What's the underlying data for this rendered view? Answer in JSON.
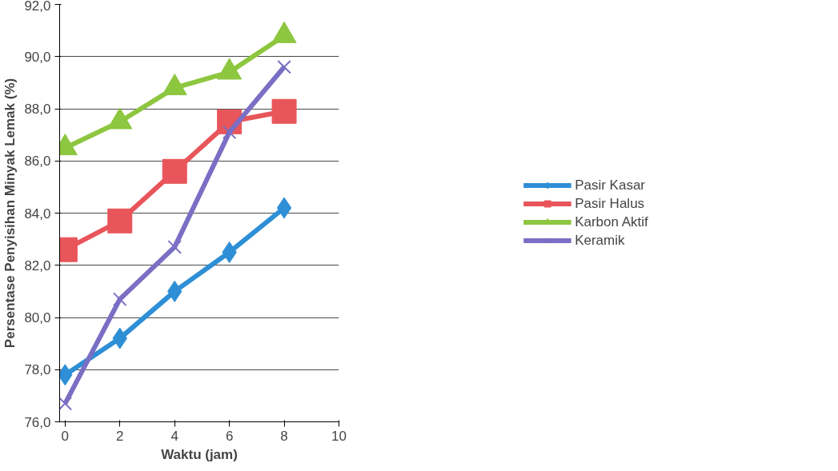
{
  "chart_data": {
    "type": "line",
    "xlabel": "Waktu (jam)",
    "ylabel": "Persentase Penyisihan Minyak Lemak (%)",
    "x": [
      0,
      2,
      4,
      6,
      8
    ],
    "xlim": [
      -0.2,
      10
    ],
    "xticks": [
      0,
      2,
      4,
      6,
      8,
      10
    ],
    "ylim": [
      76,
      92
    ],
    "yticks": [
      {
        "value": 76,
        "label": "76,0"
      },
      {
        "value": 78,
        "label": "78,0"
      },
      {
        "value": 80,
        "label": "80,0"
      },
      {
        "value": 82,
        "label": "82,0"
      },
      {
        "value": 84,
        "label": "84,0"
      },
      {
        "value": 86,
        "label": "86,0"
      },
      {
        "value": 88,
        "label": "88,0"
      },
      {
        "value": 90,
        "label": "90,0"
      },
      {
        "value": 92,
        "label": "92,0"
      }
    ],
    "grid": "y",
    "legend": "right",
    "line_style": "solid",
    "series": [
      {
        "name": "Pasir Kasar",
        "color": "#2e8fd6",
        "marker": "diamond",
        "values": [
          77.8,
          79.2,
          81.0,
          82.5,
          84.2
        ]
      },
      {
        "name": "Pasir Halus",
        "color": "#e8555a",
        "marker": "square",
        "values": [
          82.6,
          83.7,
          85.6,
          87.5,
          87.9
        ]
      },
      {
        "name": "Karbon Aktif",
        "color": "#8dc63f",
        "marker": "triangle",
        "values": [
          86.5,
          87.5,
          88.8,
          89.4,
          90.8
        ]
      },
      {
        "name": "Keramik",
        "color": "#7a6fc4",
        "marker": "cross",
        "values": [
          76.7,
          80.7,
          82.7,
          87.1,
          89.6
        ]
      }
    ]
  }
}
